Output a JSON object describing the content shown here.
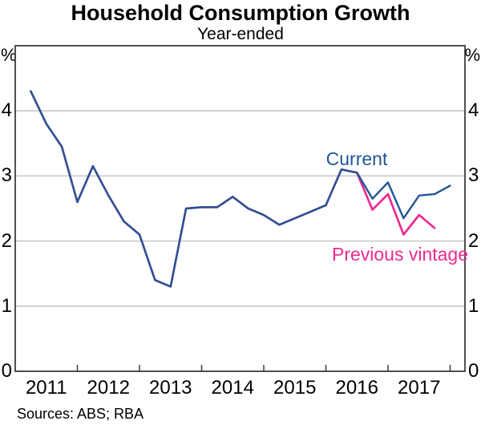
{
  "title": "Household Consumption Growth",
  "subtitle": "Year-ended",
  "footer": {
    "sources": "Sources: ABS; RBA"
  },
  "chart_data": {
    "type": "line",
    "title": "Household Consumption Growth",
    "subtitle": "Year-ended",
    "unit": "%",
    "ylabel": "%",
    "ylim": [
      0,
      5
    ],
    "y_ticks": [
      0,
      1,
      2,
      3,
      4
    ],
    "x_tick_years": [
      2011,
      2012,
      2013,
      2014,
      2015,
      2016,
      2017
    ],
    "xlim": [
      2011.0,
      2018.24
    ],
    "grid": "horizontal gridlines at 1,2,3,4; labels on both left and right axes",
    "legend_position": "inline annotations near lines",
    "categories": [
      "2011 Q1",
      "2011 Q2",
      "2011 Q3",
      "2011 Q4",
      "2012 Q1",
      "2012 Q2",
      "2012 Q3",
      "2012 Q4",
      "2013 Q1",
      "2013 Q2",
      "2013 Q3",
      "2013 Q4",
      "2014 Q1",
      "2014 Q2",
      "2014 Q3",
      "2014 Q4",
      "2015 Q1",
      "2015 Q2",
      "2015 Q3",
      "2015 Q4",
      "2016 Q1",
      "2016 Q2",
      "2016 Q3",
      "2016 Q4",
      "2017 Q1",
      "2017 Q2",
      "2017 Q3",
      "2017 Q4"
    ],
    "series": [
      {
        "name": "Current",
        "color": "#1f5796",
        "values": [
          4.3,
          3.8,
          3.45,
          2.6,
          3.15,
          2.7,
          2.3,
          2.1,
          1.4,
          1.3,
          2.5,
          2.52,
          2.52,
          2.68,
          2.5,
          2.4,
          2.25,
          2.35,
          2.45,
          2.55,
          3.1,
          3.05,
          2.65,
          2.9,
          2.35,
          2.7,
          2.72,
          2.85
        ]
      },
      {
        "name": "Previous vintage",
        "color": "#ee2a8f",
        "values": [
          4.3,
          3.8,
          3.45,
          2.6,
          3.15,
          2.7,
          2.3,
          2.1,
          1.4,
          1.3,
          2.5,
          2.52,
          2.52,
          2.68,
          2.5,
          2.4,
          2.25,
          2.35,
          2.45,
          2.55,
          3.1,
          3.05,
          2.48,
          2.72,
          2.1,
          2.4,
          2.2
        ]
      }
    ],
    "annotations": [
      {
        "text": "Current",
        "color": "#1f5796"
      },
      {
        "text": "Previous vintage",
        "color": "#ee2a8f"
      }
    ],
    "axis_color": "#3d3d3d",
    "gridline_color": "#bdbdbd"
  }
}
